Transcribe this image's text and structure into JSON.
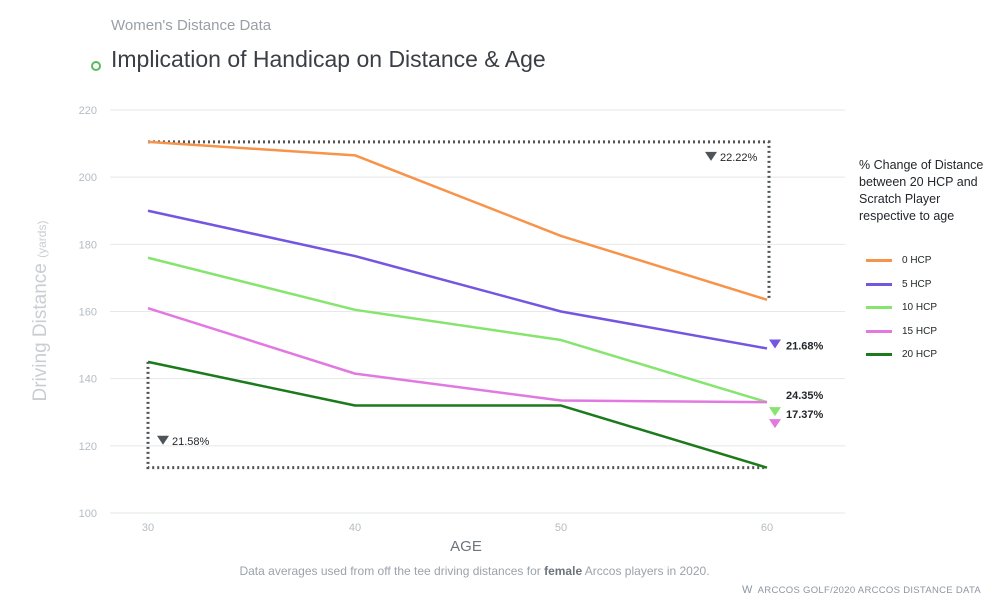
{
  "header": {
    "supertitle": "Women's Distance Data",
    "title": "Implication of Handicap on Distance & Age"
  },
  "chart_data": {
    "type": "line",
    "xlabel": "AGE",
    "ylabel": "Driving Distance",
    "ylabel_unit": "(yards)",
    "x": [
      30,
      40,
      50,
      60
    ],
    "xticks": [
      "30",
      "40",
      "50",
      "60"
    ],
    "yticks": [
      "100",
      "120",
      "140",
      "160",
      "180",
      "200",
      "220"
    ],
    "ylim": [
      100,
      220
    ],
    "grid": true,
    "series": [
      {
        "name": "0 HCP",
        "color": "#f7944a",
        "values": [
          210.5,
          206.5,
          182.5,
          163.5
        ]
      },
      {
        "name": "5 HCP",
        "color": "#7456e0",
        "values": [
          190,
          176.5,
          160,
          149
        ]
      },
      {
        "name": "10 HCP",
        "color": "#86e56e",
        "values": [
          176,
          160.5,
          151.5,
          133
        ]
      },
      {
        "name": "15 HCP",
        "color": "#e179e0",
        "values": [
          161,
          141.5,
          133.5,
          133
        ]
      },
      {
        "name": "20 HCP",
        "color": "#1b7a1b",
        "values": [
          145,
          132,
          132,
          113.5
        ]
      }
    ],
    "annotations": [
      {
        "text": "22.22%",
        "color": "#4f5459"
      },
      {
        "text": "21.58%",
        "color": "#4f5459"
      },
      {
        "text": "21.68%",
        "color": "#7456e0"
      },
      {
        "text": "24.35%",
        "color": "#86e56e"
      },
      {
        "text": "17.37%",
        "color": "#e179e0"
      }
    ],
    "legend_title": "% Change of Distance between 20 HCP and Scratch Player respective to age",
    "legend_position": "right"
  },
  "footer": {
    "note_prefix": "Data averages used from off the tee driving distances for ",
    "note_bold": "female",
    "note_suffix": " Arccos players in 2020.",
    "brand_logo": "W",
    "brand_name": "ARCCOS GOLF",
    "brand_separator": " / ",
    "brand_tagline": "2020 ARCCOS DISTANCE DATA"
  },
  "colors": {
    "accent_green": "#5cb85c",
    "grid": "#e6e8ea",
    "axis_text": "#b5bcc3",
    "annotation_dark": "#4f5459"
  }
}
